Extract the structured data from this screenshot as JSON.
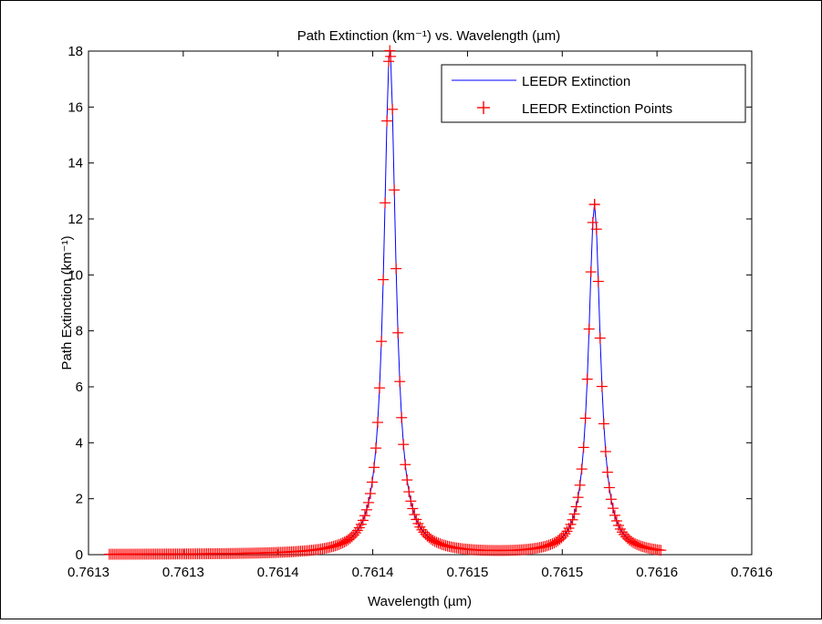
{
  "chart_data": {
    "type": "line",
    "title": "Path Extinction (km⁻¹) vs. Wavelength (µm)",
    "xlabel": "Wavelength (µm)",
    "ylabel": "Path Extinction (km⁻¹)",
    "xlim": [
      0.76125,
      0.7616
    ],
    "ylim": [
      0,
      18
    ],
    "x_ticks": [
      0.76125,
      0.7613,
      0.76135,
      0.7614,
      0.76145,
      0.7615,
      0.76155,
      0.7616
    ],
    "x_tick_labels": [
      "0.7613",
      "0.7613",
      "0.7614",
      "0.7614",
      "0.7615",
      "0.7615",
      "0.7616",
      "0.7616"
    ],
    "y_ticks": [
      0,
      2,
      4,
      6,
      8,
      10,
      12,
      14,
      16,
      18
    ],
    "y_tick_labels": [
      "0",
      "2",
      "4",
      "6",
      "8",
      "10",
      "12",
      "14",
      "16",
      "18"
    ],
    "grid": false,
    "legend_position": "top-right",
    "lines": [
      {
        "x0": 0.761261,
        "x1": 0.761552,
        "n": 301,
        "gamma": 3.8e-06,
        "peaks": [
          {
            "x": 0.761409,
            "height": 18.0
          },
          {
            "x": 0.761517,
            "height": 12.5
          }
        ]
      }
    ],
    "series": [
      {
        "name": "LEEDR Extinction",
        "style": "line",
        "color": "#0000ff"
      },
      {
        "name": "LEEDR Extinction Points",
        "style": "markers",
        "marker": "+",
        "color": "#ff0000"
      }
    ]
  }
}
